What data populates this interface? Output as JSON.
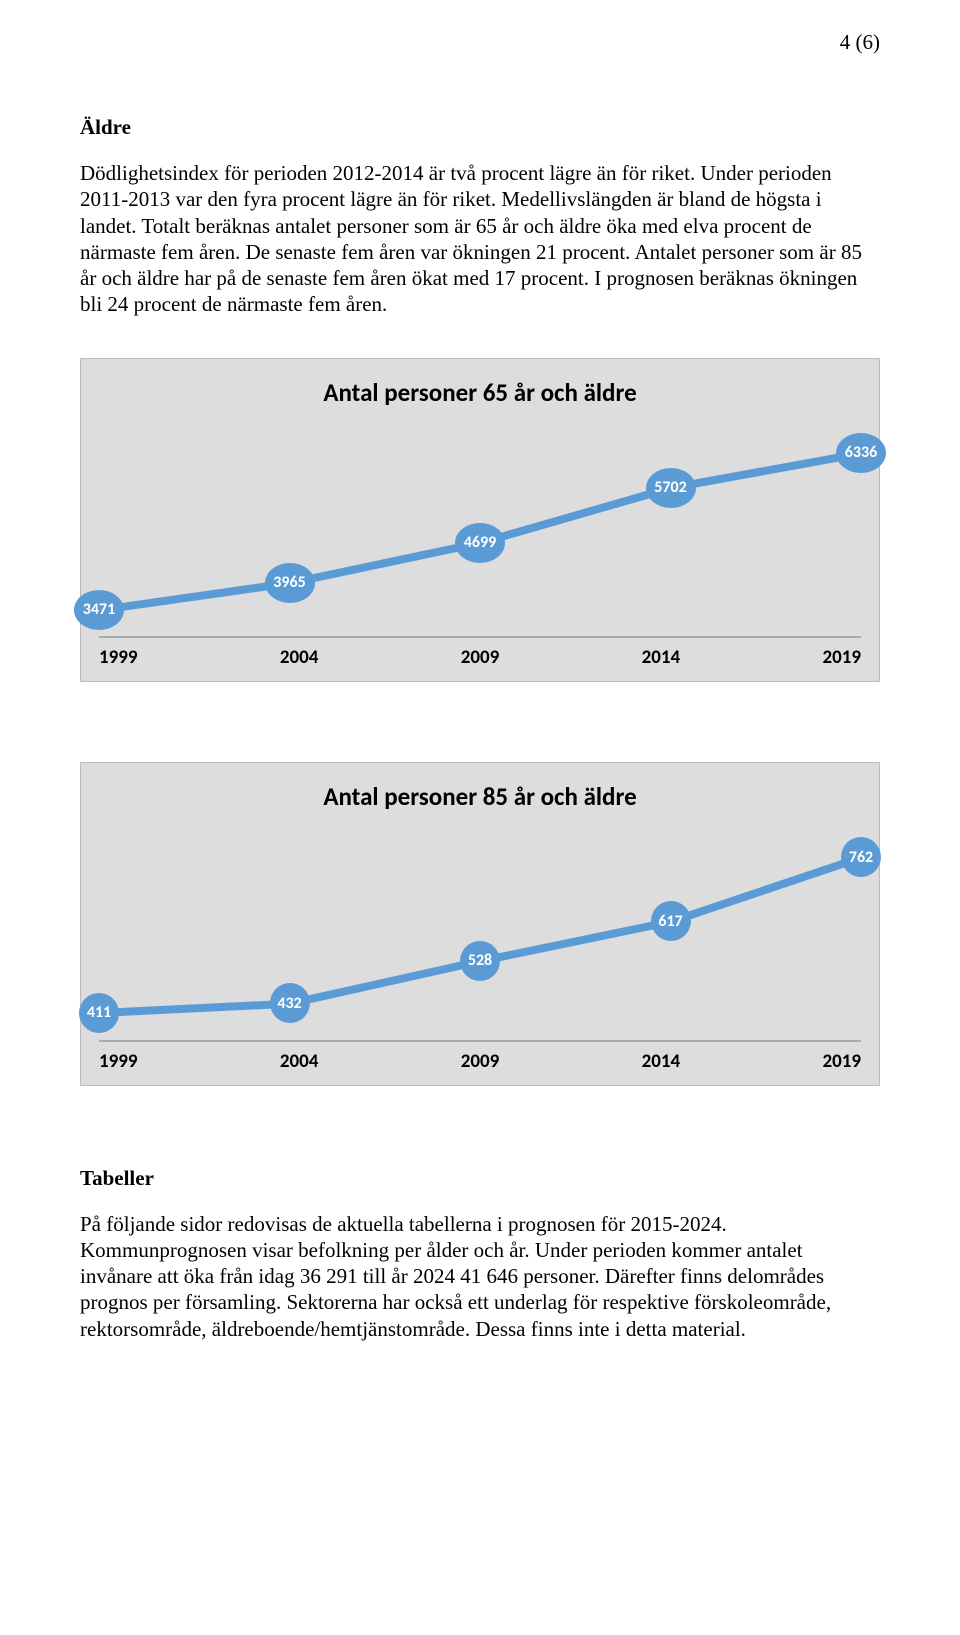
{
  "page_number": "4 (6)",
  "heading_aldre": "Äldre",
  "paragraph_aldre": "Dödlighetsindex för perioden 2012-2014 är två procent lägre än för riket. Under perioden 2011-2013 var den fyra procent lägre än för riket. Medellivslängden är bland de högsta i landet. Totalt beräknas antalet personer som är 65 år och äldre öka med elva procent de närmaste fem åren. De senaste fem åren var ökningen 21 procent. Antalet personer som är 85 år och äldre har på de senaste fem åren ökat med 17 procent. I prognosen beräknas ökningen bli 24 procent de närmaste fem åren.",
  "chart65": {
    "type": "line",
    "title": "Antal personer 65 år och äldre",
    "categories": [
      "1999",
      "2004",
      "2009",
      "2014",
      "2019"
    ],
    "values": [
      3471,
      3965,
      4699,
      5702,
      6336
    ],
    "line_color": "#5b9bd5",
    "marker_fill": "#5b9bd5",
    "marker_text_color": "#ffffff",
    "line_width": 8,
    "marker_size": 40,
    "background": "#dddddd",
    "axis_color": "#aaaaaa",
    "ylim": [
      3000,
      6800
    ],
    "title_fontsize": 25,
    "label_fontsize": 19
  },
  "chart85": {
    "type": "line",
    "title": "Antal personer 85 år och äldre",
    "categories": [
      "1999",
      "2004",
      "2009",
      "2014",
      "2019"
    ],
    "values": [
      411,
      432,
      528,
      617,
      762
    ],
    "line_color": "#5b9bd5",
    "marker_fill": "#5b9bd5",
    "marker_text_color": "#ffffff",
    "line_width": 8,
    "marker_size": 40,
    "background": "#dddddd",
    "axis_color": "#aaaaaa",
    "ylim": [
      350,
      820
    ],
    "title_fontsize": 25,
    "label_fontsize": 19
  },
  "heading_tabeller": "Tabeller",
  "paragraph_tabeller": "På följande sidor redovisas de aktuella tabellerna i prognosen för 2015-2024. Kommunprognosen visar befolkning per ålder och år. Under perioden kommer antalet invånare att öka från idag 36 291 till år 2024  41 646 personer. Därefter finns delområdes prognos per församling. Sektorerna har också ett underlag för respektive förskoleområde, rektorsområde, äldreboende/hemtjänstområde. Dessa finns inte i detta material."
}
